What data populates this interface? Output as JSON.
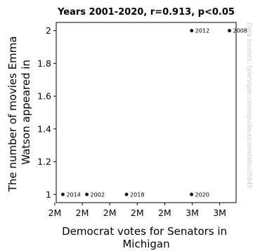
{
  "chart_data": {
    "type": "scatter",
    "title": "Years 2001-2020, r=0.913, p<0.05",
    "xlabel_lines": [
      "Democrat votes for Senators in",
      "Michigan"
    ],
    "ylabel_lines": [
      "The number of movies Emma",
      "Watson appeared in"
    ],
    "x_ticks": [
      "2M",
      "2M",
      "2M",
      "2M",
      "2M",
      "3M",
      "3M"
    ],
    "y_ticks": [
      "1",
      "1.2",
      "1.4",
      "1.6",
      "1.8",
      "2"
    ],
    "ylim": [
      0.95,
      2.05
    ],
    "points": [
      {
        "year": "2014",
        "x": 1704936,
        "y": 1
      },
      {
        "year": "2002",
        "x": 1896614,
        "y": 1
      },
      {
        "year": "2020",
        "x": 2734568,
        "y": 1
      },
      {
        "year": "2018",
        "x": 2214478,
        "y": 1
      },
      {
        "year": "2012",
        "x": 2735826,
        "y": 2
      },
      {
        "year": "2008",
        "x": 3038386,
        "y": 2
      }
    ],
    "grid": false,
    "watermark": "Data sources: tylervigen.com/spurious/correlation/5845"
  }
}
